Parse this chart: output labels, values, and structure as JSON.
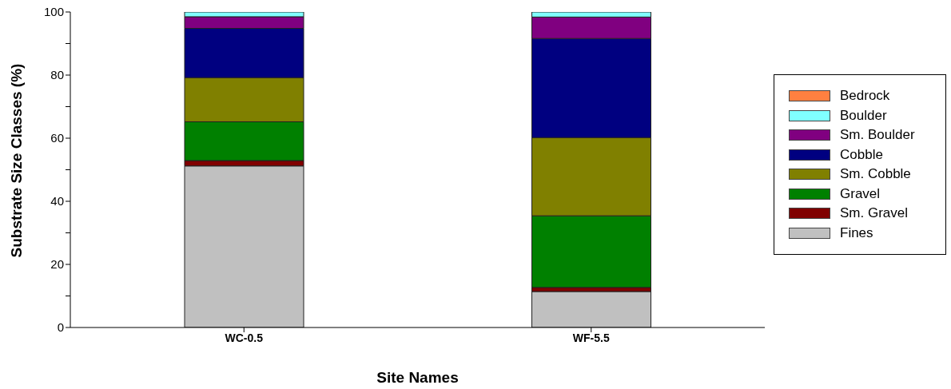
{
  "chart_data": {
    "type": "bar",
    "stacked": true,
    "xlabel": "Site Names",
    "ylabel": "Substrate Size Classes (%)",
    "categories": [
      "WC-0.5",
      "WF-5.5"
    ],
    "series": [
      {
        "name": "Fines",
        "color": "#c0c0c0",
        "values": [
          51.2,
          11.4
        ]
      },
      {
        "name": "Sm. Gravel",
        "color": "#800000",
        "values": [
          1.7,
          1.3
        ]
      },
      {
        "name": "Gravel",
        "color": "#008000",
        "values": [
          12.3,
          22.7
        ]
      },
      {
        "name": "Sm. Cobble",
        "color": "#808000",
        "values": [
          14.0,
          24.8
        ]
      },
      {
        "name": "Cobble",
        "color": "#000080",
        "values": [
          15.6,
          31.4
        ]
      },
      {
        "name": "Sm. Boulder",
        "color": "#800080",
        "values": [
          3.7,
          6.8
        ]
      },
      {
        "name": "Boulder",
        "color": "#80ffff",
        "values": [
          1.5,
          1.6
        ]
      },
      {
        "name": "Bedrock",
        "color": "#ff8040",
        "values": [
          0,
          0
        ]
      }
    ],
    "ylim": [
      0,
      100
    ],
    "yticks": [
      0,
      {
        "value": 10,
        "label": null
      },
      20,
      {
        "value": 30,
        "label": null
      },
      40,
      {
        "value": 50,
        "label": null
      },
      60,
      {
        "value": 70,
        "label": null
      },
      80,
      {
        "value": 90,
        "label": null
      },
      100
    ],
    "grid": false,
    "legend": "right"
  }
}
